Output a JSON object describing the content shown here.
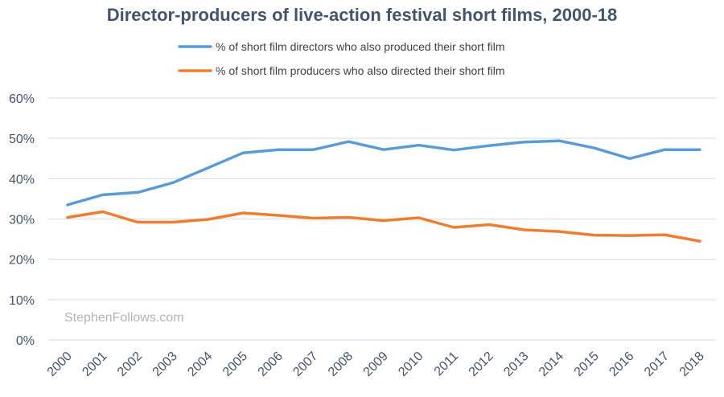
{
  "chart_data": {
    "type": "line",
    "title": "Director-producers of live-action festival short films, 2000-18",
    "categories": [
      "2000",
      "2001",
      "2002",
      "2003",
      "2004",
      "2005",
      "2006",
      "2007",
      "2008",
      "2009",
      "2010",
      "2011",
      "2012",
      "2013",
      "2014",
      "2015",
      "2016",
      "2017",
      "2018"
    ],
    "series": [
      {
        "name": "% of short film directors who also produced their short film",
        "color": "#5b9bd5",
        "values": [
          33.5,
          36,
          36.6,
          39,
          42.7,
          46.4,
          47.2,
          47.2,
          49.2,
          47.2,
          48.3,
          47.1,
          48.2,
          49.1,
          49.4,
          47.6,
          45,
          47.2,
          47.2
        ]
      },
      {
        "name": "% of short film producers who also directed their short film",
        "color": "#ed7d31",
        "values": [
          30.4,
          31.8,
          29.2,
          29.2,
          29.9,
          31.5,
          30.9,
          30.2,
          30.4,
          29.6,
          30.3,
          27.9,
          28.6,
          27.3,
          26.9,
          26,
          25.9,
          26.1,
          24.5
        ]
      }
    ],
    "ylim": [
      0,
      60
    ],
    "yticks": [
      "0%",
      "10%",
      "20%",
      "30%",
      "40%",
      "50%",
      "60%"
    ],
    "ytick_values": [
      0,
      10,
      20,
      30,
      40,
      50,
      60
    ],
    "xlabel": "",
    "ylabel": "",
    "grid": true,
    "legend_position": "top",
    "watermark": "StephenFollows.com"
  }
}
